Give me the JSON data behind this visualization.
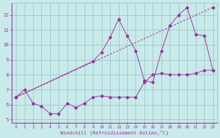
{
  "xlabel": "Windchill (Refroidissement éolien,°C)",
  "background_color": "#c8eaea",
  "grid_color": "#99bbbb",
  "line_color": "#993399",
  "xlim": [
    -0.5,
    23.5
  ],
  "ylim": [
    4.8,
    12.8
  ],
  "yticks": [
    5,
    6,
    7,
    8,
    9,
    10,
    11,
    12
  ],
  "xticks": [
    0,
    1,
    2,
    3,
    4,
    5,
    6,
    7,
    8,
    9,
    10,
    11,
    12,
    13,
    14,
    15,
    16,
    17,
    18,
    19,
    20,
    21,
    22,
    23
  ],
  "line1_x": [
    0,
    1,
    2,
    3,
    4,
    5,
    6,
    7,
    8,
    9,
    10,
    11,
    12,
    13,
    14,
    15,
    16,
    17,
    18,
    19,
    20,
    21,
    22,
    23
  ],
  "line1_y": [
    6.5,
    7.0,
    6.1,
    5.9,
    5.4,
    5.4,
    6.1,
    5.8,
    6.1,
    6.5,
    6.6,
    6.5,
    6.5,
    6.5,
    6.5,
    7.5,
    8.0,
    8.1,
    8.0,
    8.0,
    8.0,
    8.1,
    8.3,
    8.3
  ],
  "line2_x": [
    0,
    9,
    10,
    11,
    12,
    13,
    14,
    15,
    16,
    17,
    18,
    19,
    20,
    21,
    22,
    23
  ],
  "line2_y": [
    6.5,
    8.9,
    9.5,
    10.5,
    11.7,
    10.6,
    9.6,
    7.6,
    7.5,
    9.6,
    11.3,
    12.0,
    12.5,
    10.7,
    10.6,
    8.3
  ],
  "line3_x": [
    0,
    23
  ],
  "line3_y": [
    6.5,
    12.5
  ],
  "line1_style": "solid",
  "line2_style": "solid",
  "line3_style": "dashed"
}
